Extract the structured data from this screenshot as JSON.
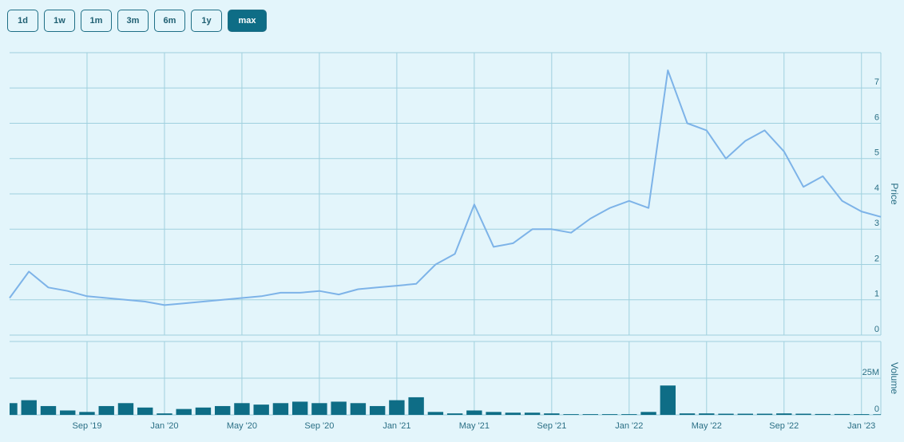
{
  "buttons": [
    {
      "label": "1d",
      "selected": false
    },
    {
      "label": "1w",
      "selected": false
    },
    {
      "label": "1m",
      "selected": false
    },
    {
      "label": "3m",
      "selected": false
    },
    {
      "label": "6m",
      "selected": false
    },
    {
      "label": "1y",
      "selected": false
    },
    {
      "label": "max",
      "selected": true
    }
  ],
  "chart_data": [
    {
      "type": "line",
      "y_label": "Price",
      "color": "#7db3e8",
      "grid": true,
      "x": [
        "2019-05",
        "2019-06",
        "2019-07",
        "2019-08",
        "2019-09",
        "2019-10",
        "2019-11",
        "2019-12",
        "2020-01",
        "2020-02",
        "2020-03",
        "2020-04",
        "2020-05",
        "2020-06",
        "2020-07",
        "2020-08",
        "2020-09",
        "2020-10",
        "2020-11",
        "2020-12",
        "2021-01",
        "2021-02",
        "2021-03",
        "2021-04",
        "2021-05",
        "2021-06",
        "2021-07",
        "2021-08",
        "2021-09",
        "2021-10",
        "2021-11",
        "2021-12",
        "2022-01",
        "2022-02",
        "2022-03",
        "2022-04",
        "2022-05",
        "2022-06",
        "2022-07",
        "2022-08",
        "2022-09",
        "2022-10",
        "2022-11",
        "2022-12",
        "2023-01",
        "2023-02"
      ],
      "values": [
        1.05,
        1.8,
        1.35,
        1.25,
        1.1,
        1.05,
        1.0,
        0.95,
        0.85,
        0.9,
        0.95,
        1.0,
        1.05,
        1.1,
        1.2,
        1.2,
        1.25,
        1.15,
        1.3,
        1.35,
        1.4,
        1.45,
        2.0,
        2.3,
        3.7,
        2.5,
        2.6,
        3.0,
        3.0,
        2.9,
        3.3,
        3.6,
        3.8,
        3.6,
        7.5,
        6.0,
        5.8,
        5.0,
        5.5,
        5.8,
        5.2,
        4.2,
        4.5,
        3.8,
        3.5,
        3.35
      ],
      "xlim": [
        "2019-05",
        "2023-02"
      ],
      "ylim": [
        0,
        8
      ],
      "yticks": [
        0,
        1,
        2,
        3,
        4,
        5,
        6,
        7
      ]
    },
    {
      "type": "bar",
      "y_label": "Volume",
      "color": "#0e6d86",
      "grid": true,
      "x": [
        "2019-05",
        "2019-06",
        "2019-07",
        "2019-08",
        "2019-09",
        "2019-10",
        "2019-11",
        "2019-12",
        "2020-01",
        "2020-02",
        "2020-03",
        "2020-04",
        "2020-05",
        "2020-06",
        "2020-07",
        "2020-08",
        "2020-09",
        "2020-10",
        "2020-11",
        "2020-12",
        "2021-01",
        "2021-02",
        "2021-03",
        "2021-04",
        "2021-05",
        "2021-06",
        "2021-07",
        "2021-08",
        "2021-09",
        "2021-10",
        "2021-11",
        "2021-12",
        "2022-01",
        "2022-02",
        "2022-03",
        "2022-04",
        "2022-05",
        "2022-06",
        "2022-07",
        "2022-08",
        "2022-09",
        "2022-10",
        "2022-11",
        "2022-12",
        "2023-01",
        "2023-02"
      ],
      "values": [
        8000000,
        10000000,
        6000000,
        3000000,
        2000000,
        6000000,
        8000000,
        5000000,
        1000000,
        4000000,
        5000000,
        6000000,
        8000000,
        7000000,
        8000000,
        9000000,
        8000000,
        9000000,
        8000000,
        6000000,
        10000000,
        12000000,
        2000000,
        1000000,
        3000000,
        2000000,
        1500000,
        1500000,
        1000000,
        500000,
        500000,
        500000,
        500000,
        2000000,
        20000000,
        1000000,
        1000000,
        800000,
        800000,
        800000,
        1000000,
        800000,
        600000,
        600000,
        500000,
        400000
      ],
      "xlim": [
        "2019-05",
        "2023-02"
      ],
      "xticks": [
        {
          "value": "2019-09",
          "label": "Sep '19"
        },
        {
          "value": "2020-01",
          "label": "Jan '20"
        },
        {
          "value": "2020-05",
          "label": "May '20"
        },
        {
          "value": "2020-09",
          "label": "Sep '20"
        },
        {
          "value": "2021-01",
          "label": "Jan '21"
        },
        {
          "value": "2021-05",
          "label": "May '21"
        },
        {
          "value": "2021-09",
          "label": "Sep '21"
        },
        {
          "value": "2022-01",
          "label": "Jan '22"
        },
        {
          "value": "2022-05",
          "label": "May '22"
        },
        {
          "value": "2022-09",
          "label": "Sep '22"
        },
        {
          "value": "2023-01",
          "label": "Jan '23"
        }
      ],
      "ylim": [
        0,
        50000000
      ],
      "yticks": [
        0,
        {
          "value": 25000000,
          "label": "25M"
        }
      ]
    }
  ]
}
